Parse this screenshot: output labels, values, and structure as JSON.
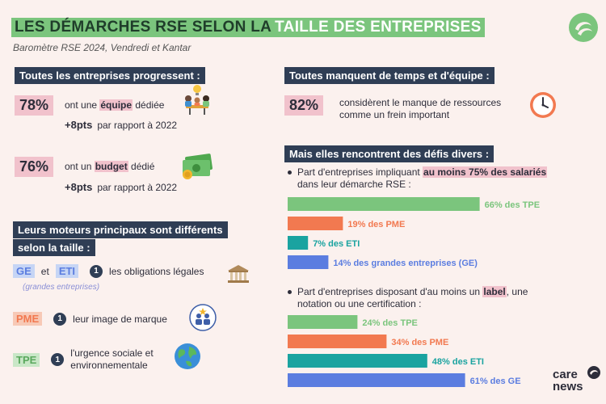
{
  "header": {
    "title_part1": "LES DÉMARCHES RSE SELON LA",
    "title_part2": "TAILLE DES ENTREPRISES",
    "subtitle": "Baromètre RSE 2024, Vendredi et Kantar"
  },
  "left": {
    "progress_heading": "Toutes les entreprises progressent :",
    "stat1": {
      "pct": "78%",
      "pre": "ont une ",
      "keyword": "équipe",
      "post": " dédiée",
      "delta": "+8pts",
      "delta_text": "par rapport à 2022",
      "icon": "team-meeting-icon"
    },
    "stat2": {
      "pct": "76%",
      "pre": "ont un ",
      "keyword": "budget",
      "post": " dédié",
      "delta": "+8pts",
      "delta_text": "par rapport à 2022",
      "icon": "money-icon"
    },
    "drivers_heading_line1": "Leurs moteurs principaux sont différents",
    "drivers_heading_line2": "selon la taille :",
    "drivers": [
      {
        "tags": [
          "GE",
          "ETI"
        ],
        "and": "et",
        "note": "(grandes entreprises)",
        "rank": "1",
        "text": "les obligations légales",
        "icon": "government-building-icon"
      },
      {
        "tags": [
          "PME"
        ],
        "rank": "1",
        "text": "leur image de marque",
        "icon": "brand-image-icon"
      },
      {
        "tags": [
          "TPE"
        ],
        "rank": "1",
        "text_line1": "l'urgence sociale et",
        "text_line2": "environnementale",
        "icon": "globe-icon"
      }
    ]
  },
  "right": {
    "time_heading": "Toutes manquent de temps et d'équipe :",
    "time_stat": {
      "pct": "82%",
      "line1": "considèrent le manque de ressources",
      "line2": "comme un frein important",
      "icon": "clock-icon"
    },
    "challenges_heading": "Mais elles rencontrent des défis divers :",
    "q1": {
      "pre": "Part d'entreprises impliquant ",
      "highlight": "au moins 75% des salariés",
      "line2": "dans leur démarche RSE :"
    },
    "q2": {
      "pre": "Part d'entreprises disposant d'au moins un ",
      "highlight": "label",
      "post": ", une",
      "line2": "notation ou une certification :"
    }
  },
  "chart_data": [
    {
      "type": "bar",
      "categories": [
        "TPE",
        "PME",
        "ETI",
        "grandes entreprises (GE)"
      ],
      "values": [
        66,
        19,
        7,
        14
      ],
      "labels": [
        "66% des TPE",
        "19% des PME",
        "7% des ETI",
        "14% des grandes entreprises (GE)"
      ],
      "colors": [
        "#7bc57d",
        "#f27950",
        "#1aa3a0",
        "#5b7de0"
      ]
    },
    {
      "type": "bar",
      "categories": [
        "TPE",
        "PME",
        "ETI",
        "GE"
      ],
      "values": [
        24,
        34,
        48,
        61
      ],
      "labels": [
        "24% des TPE",
        "34% des PME",
        "48% des ETI",
        "61% des GE"
      ],
      "colors": [
        "#7bc57d",
        "#f27950",
        "#1aa3a0",
        "#5b7de0"
      ]
    }
  ],
  "footer": {
    "brand_line1": "care",
    "brand_line2": "news"
  },
  "colors": {
    "green": "#7bc57d",
    "navy": "#2f3e55",
    "pink": "#f1c2cc",
    "orange": "#f27950",
    "teal": "#1aa3a0",
    "blue": "#5b7de0"
  }
}
